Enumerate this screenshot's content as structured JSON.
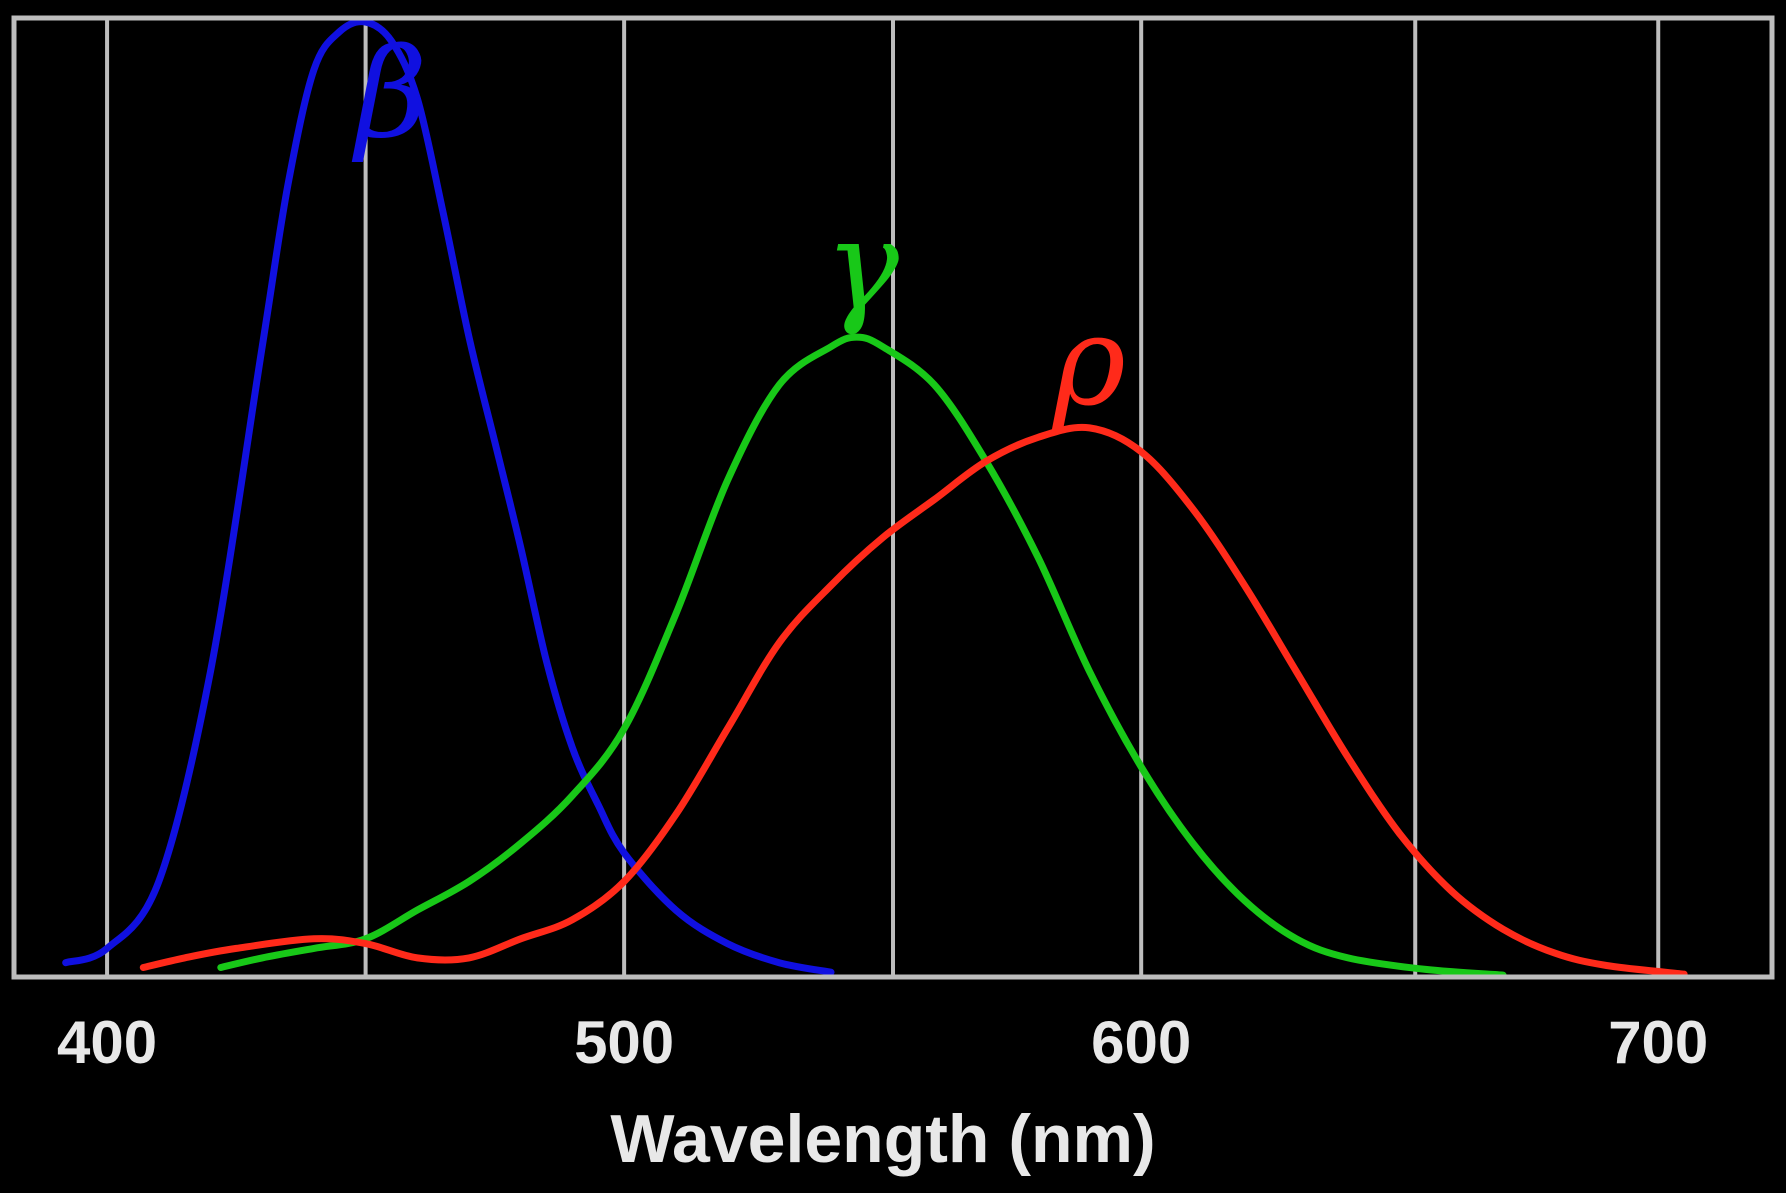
{
  "chart_data": {
    "type": "line",
    "xlabel": "Wavelength (nm)",
    "ylabel": "",
    "title": "",
    "xlim": [
      382,
      722
    ],
    "ylim": [
      0,
      1
    ],
    "x_ticks": [
      400,
      500,
      600,
      700
    ],
    "x_tick_labels": [
      "400",
      "500",
      "600",
      "700"
    ],
    "x_gridlines": [
      400,
      450,
      500,
      552,
      600,
      653,
      700
    ],
    "grid": "vertical lines only",
    "background": "#000000",
    "frame_color": "#bdbdbd",
    "series": [
      {
        "name": "β",
        "color": "#1010e0",
        "label_at": [
          455,
          0.88
        ],
        "points": [
          [
            392,
            0.015
          ],
          [
            400,
            0.03
          ],
          [
            410,
            0.1
          ],
          [
            420,
            0.32
          ],
          [
            430,
            0.66
          ],
          [
            435,
            0.83
          ],
          [
            440,
            0.95
          ],
          [
            445,
            0.99
          ],
          [
            450,
            1.0
          ],
          [
            455,
            0.98
          ],
          [
            460,
            0.92
          ],
          [
            465,
            0.8
          ],
          [
            470,
            0.67
          ],
          [
            475,
            0.56
          ],
          [
            480,
            0.45
          ],
          [
            485,
            0.33
          ],
          [
            490,
            0.24
          ],
          [
            495,
            0.18
          ],
          [
            500,
            0.13
          ],
          [
            510,
            0.07
          ],
          [
            520,
            0.035
          ],
          [
            530,
            0.015
          ],
          [
            540,
            0.005
          ]
        ]
      },
      {
        "name": "γ",
        "color": "#18c818",
        "label_at": [
          546,
          0.7
        ],
        "points": [
          [
            422,
            0.01
          ],
          [
            430,
            0.02
          ],
          [
            440,
            0.03
          ],
          [
            450,
            0.04
          ],
          [
            460,
            0.07
          ],
          [
            470,
            0.1
          ],
          [
            480,
            0.14
          ],
          [
            490,
            0.19
          ],
          [
            500,
            0.26
          ],
          [
            510,
            0.38
          ],
          [
            520,
            0.52
          ],
          [
            530,
            0.62
          ],
          [
            540,
            0.66
          ],
          [
            545,
            0.67
          ],
          [
            550,
            0.66
          ],
          [
            560,
            0.62
          ],
          [
            570,
            0.54
          ],
          [
            580,
            0.44
          ],
          [
            590,
            0.32
          ],
          [
            600,
            0.22
          ],
          [
            610,
            0.14
          ],
          [
            620,
            0.08
          ],
          [
            630,
            0.04
          ],
          [
            640,
            0.02
          ],
          [
            655,
            0.008
          ],
          [
            670,
            0.002
          ]
        ]
      },
      {
        "name": "ρ",
        "color": "#ff2a1a",
        "label_at": [
          590,
          0.6
        ],
        "points": [
          [
            407,
            0.01
          ],
          [
            415,
            0.02
          ],
          [
            425,
            0.03
          ],
          [
            440,
            0.04
          ],
          [
            450,
            0.035
          ],
          [
            460,
            0.02
          ],
          [
            470,
            0.02
          ],
          [
            480,
            0.04
          ],
          [
            490,
            0.06
          ],
          [
            500,
            0.1
          ],
          [
            510,
            0.17
          ],
          [
            520,
            0.26
          ],
          [
            530,
            0.35
          ],
          [
            540,
            0.41
          ],
          [
            550,
            0.46
          ],
          [
            560,
            0.5
          ],
          [
            570,
            0.54
          ],
          [
            580,
            0.565
          ],
          [
            590,
            0.575
          ],
          [
            600,
            0.55
          ],
          [
            610,
            0.49
          ],
          [
            620,
            0.41
          ],
          [
            630,
            0.32
          ],
          [
            640,
            0.23
          ],
          [
            650,
            0.15
          ],
          [
            660,
            0.09
          ],
          [
            670,
            0.05
          ],
          [
            680,
            0.025
          ],
          [
            690,
            0.012
          ],
          [
            705,
            0.003
          ]
        ]
      }
    ]
  }
}
